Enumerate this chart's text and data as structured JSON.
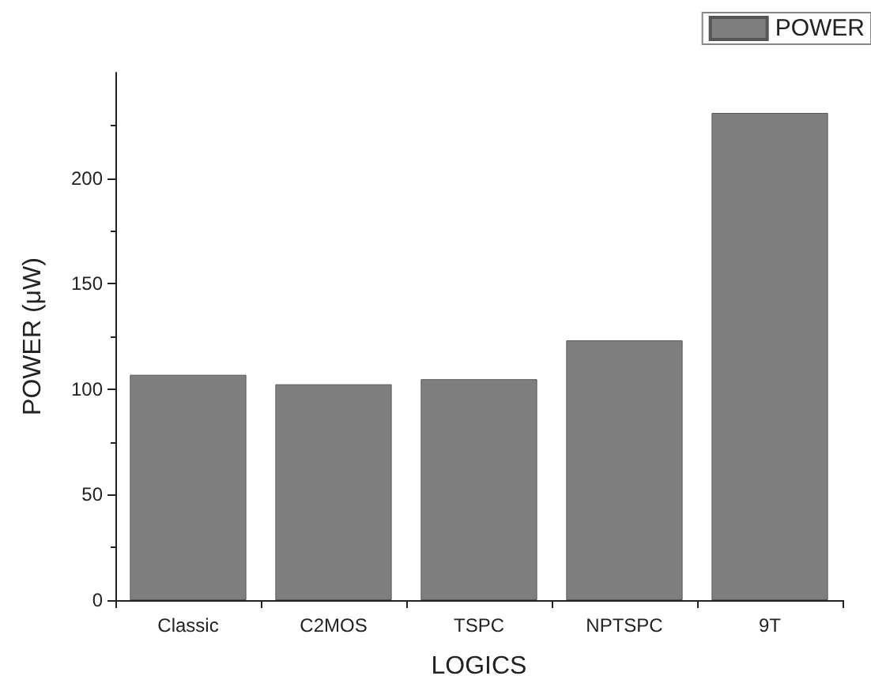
{
  "chart_data": {
    "type": "bar",
    "xlabel": "LOGICS",
    "ylabel": "POWER (μW)",
    "categories": [
      "Classic",
      "C2MOS",
      "TSPC",
      "NPTSPC",
      "9T"
    ],
    "series": [
      {
        "name": "POWER",
        "color": "#7f7f7f",
        "values": [
          106.8,
          102.3,
          104.7,
          123.1,
          230.9
        ]
      }
    ],
    "ylim": [
      0,
      250
    ],
    "yticks": [
      0,
      50,
      100,
      150,
      200
    ],
    "grid": false,
    "legend": "top right"
  }
}
